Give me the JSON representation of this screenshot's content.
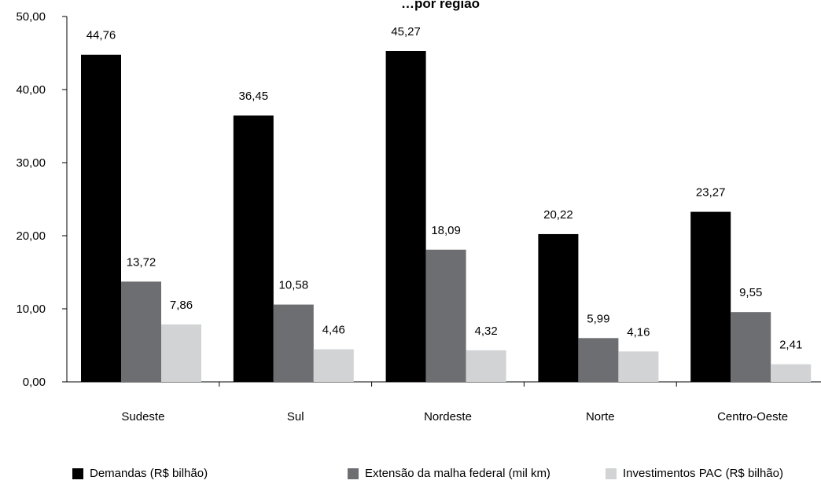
{
  "chart_data": {
    "type": "bar",
    "title": "…por região",
    "categories": [
      "Sudeste",
      "Sul",
      "Nordeste",
      "Norte",
      "Centro-Oeste"
    ],
    "series": [
      {
        "name": "Demandas (R$ bilhão)",
        "color": "#000000",
        "values": [
          44.76,
          36.45,
          45.27,
          20.22,
          23.27
        ],
        "labels": [
          "44,76",
          "36,45",
          "45,27",
          "20,22",
          "23,27"
        ]
      },
      {
        "name": "Extensão da malha federal (mil km)",
        "color": "#6d6e71",
        "values": [
          13.72,
          10.58,
          18.09,
          5.99,
          9.55
        ],
        "labels": [
          "13,72",
          "10,58",
          "18,09",
          "5,99",
          "9,55"
        ]
      },
      {
        "name": "Investimentos PAC (R$ bilhão)",
        "color": "#d1d3d4",
        "values": [
          7.86,
          4.46,
          4.32,
          4.16,
          2.41
        ],
        "labels": [
          "7,86",
          "4,46",
          "4,32",
          "4,16",
          "2,41"
        ]
      }
    ],
    "ylim": [
      0,
      50
    ],
    "yticks": [
      "0,00",
      "10,00",
      "20,00",
      "30,00",
      "40,00",
      "50,00"
    ],
    "xlabel": "",
    "ylabel": "",
    "grid": false,
    "legend": "bottom"
  }
}
